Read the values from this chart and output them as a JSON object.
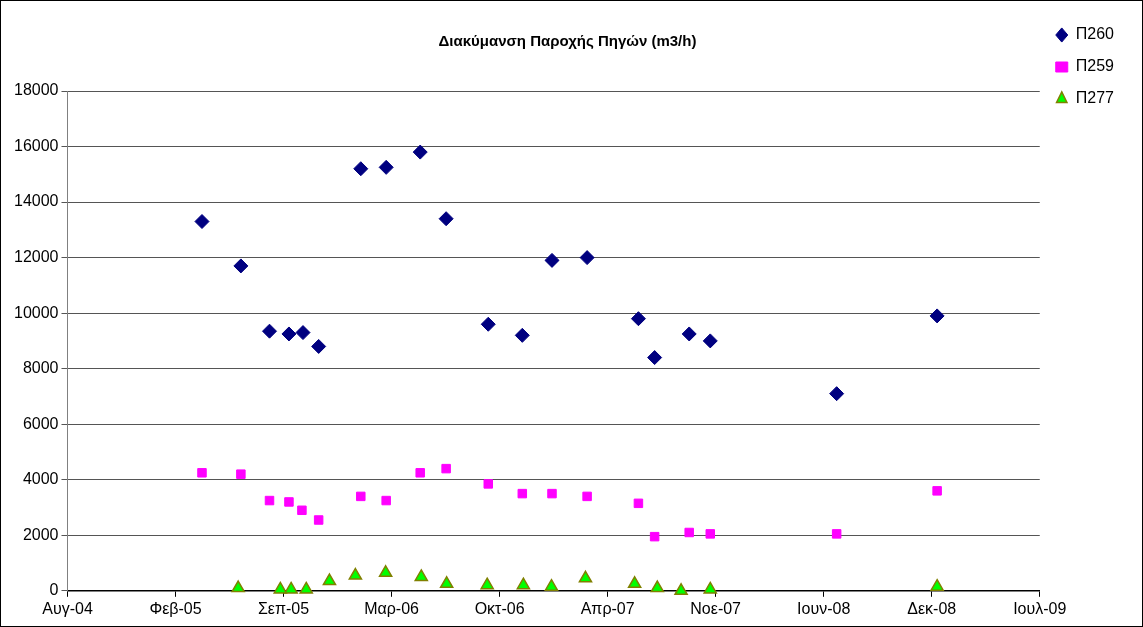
{
  "chart_data": {
    "type": "scatter",
    "title": "Διακύμανση Παροχής Πηγών (m3/h)",
    "x": [
      "2005-04-07",
      "2005-06-18",
      "2005-08-10",
      "2005-09-15",
      "2005-10-11",
      "2005-11-09",
      "2006-01-26",
      "2006-03-14",
      "2006-05-16",
      "2006-07-03",
      "2006-09-19",
      "2006-11-21",
      "2007-01-15",
      "2007-03-21",
      "2007-06-24",
      "2007-07-24",
      "2007-09-26",
      "2007-11-04",
      "2008-06-25",
      "2008-12-28"
    ],
    "series": [
      {
        "name": "Π260",
        "color": "#000080",
        "marker": "diamond",
        "values": [
          13300,
          11700,
          9350,
          9250,
          9300,
          8800,
          15200,
          15250,
          15800,
          13400,
          9600,
          9200,
          11900,
          12000,
          9800,
          8400,
          9250,
          9000,
          7100,
          9900
        ]
      },
      {
        "name": "Π259",
        "color": "#ff00ff",
        "marker": "square",
        "x": [
          "2005-04-07",
          "2005-06-18",
          "2005-08-10",
          "2005-09-15",
          "2005-10-09",
          "2005-11-09",
          "2006-01-26",
          "2006-03-14",
          "2006-05-16",
          "2006-07-03",
          "2006-09-19",
          "2006-11-21",
          "2007-01-15",
          "2007-03-21",
          "2007-06-24",
          "2007-07-24",
          "2007-09-26",
          "2007-11-04",
          "2008-06-25",
          "2008-12-28"
        ],
        "values": [
          4250,
          4200,
          3250,
          3200,
          2900,
          2550,
          3400,
          3250,
          4250,
          4400,
          3850,
          3500,
          3500,
          3400,
          3150,
          1950,
          2100,
          2050,
          2050,
          3600
        ]
      },
      {
        "name": "Π277",
        "color": "#00ff00",
        "marker": "triangle",
        "x": [
          "2005-06-13",
          "2005-08-30",
          "2005-09-19",
          "2005-10-17",
          "2005-11-29",
          "2006-01-16",
          "2006-03-13",
          "2006-05-18",
          "2006-07-04",
          "2006-09-17",
          "2006-11-23",
          "2007-01-14",
          "2007-03-18",
          "2007-06-17",
          "2007-07-29",
          "2007-09-11",
          "2007-11-04",
          "2008-12-28"
        ],
        "values": [
          100,
          50,
          50,
          50,
          350,
          550,
          650,
          500,
          250,
          200,
          200,
          150,
          450,
          250,
          100,
          0,
          50,
          150
        ]
      }
    ],
    "xlim": [
      "2004-08-01",
      "2009-07-06"
    ],
    "xticks": [
      {
        "value": "2004-08-01",
        "label": "Αυγ-04"
      },
      {
        "value": "2005-02-17",
        "label": "Φεβ-05"
      },
      {
        "value": "2005-09-05",
        "label": "Σεπ-05"
      },
      {
        "value": "2006-03-24",
        "label": "Μαρ-06"
      },
      {
        "value": "2006-10-10",
        "label": "Οκτ-06"
      },
      {
        "value": "2007-04-28",
        "label": "Απρ-07"
      },
      {
        "value": "2007-11-14",
        "label": "Νοε-07"
      },
      {
        "value": "2008-06-01",
        "label": "Ιουν-08"
      },
      {
        "value": "2008-12-18",
        "label": "Δεκ-08"
      },
      {
        "value": "2009-07-06",
        "label": "Ιουλ-09"
      }
    ],
    "ylim": [
      0,
      18000
    ],
    "yticks": [
      0,
      2000,
      4000,
      6000,
      8000,
      10000,
      12000,
      14000,
      16000,
      18000
    ],
    "grid": "y",
    "legend": "top right"
  }
}
